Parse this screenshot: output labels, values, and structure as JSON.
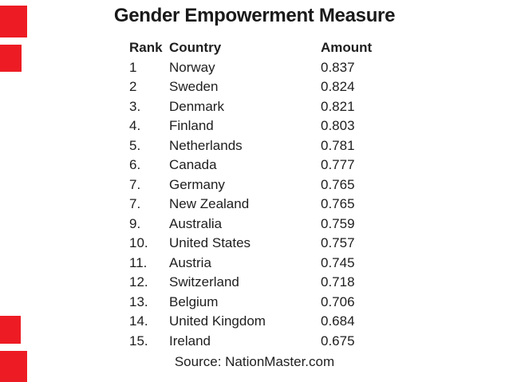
{
  "slide": {
    "title": "Gender Empowerment Measure",
    "source_text": "Source: NationMaster.com",
    "accent_color": "#ed1c24",
    "text_color": "#1e1e1e"
  },
  "chart_data": {
    "type": "table",
    "title": "Gender Empowerment Measure",
    "columns": [
      "Rank",
      "Country",
      "Amount"
    ],
    "rows": [
      {
        "rank": "1",
        "country": "Norway",
        "amount": "0.837"
      },
      {
        "rank": "2",
        "country": "Sweden",
        "amount": "0.824"
      },
      {
        "rank": "3.",
        "country": "Denmark",
        "amount": "0.821"
      },
      {
        "rank": "4.",
        "country": "Finland",
        "amount": "0.803"
      },
      {
        "rank": "5.",
        "country": "Netherlands",
        "amount": "0.781"
      },
      {
        "rank": "6.",
        "country": "Canada",
        "amount": "0.777"
      },
      {
        "rank": "7.",
        "country": "Germany",
        "amount": "0.765"
      },
      {
        "rank": "7.",
        "country": "New Zealand",
        "amount": "0.765"
      },
      {
        "rank": "9.",
        "country": "Australia",
        "amount": "0.759"
      },
      {
        "rank": "10.",
        "country": "United States",
        "amount": "0.757"
      },
      {
        "rank": "11.",
        "country": "Austria",
        "amount": "0.745"
      },
      {
        "rank": "12.",
        "country": "Switzerland",
        "amount": "0.718"
      },
      {
        "rank": "13.",
        "country": "Belgium",
        "amount": "0.706"
      },
      {
        "rank": "14.",
        "country": "United Kingdom",
        "amount": "0.684"
      },
      {
        "rank": "15.",
        "country": "Ireland",
        "amount": "0.675"
      }
    ],
    "source": "Source: NationMaster.com"
  }
}
